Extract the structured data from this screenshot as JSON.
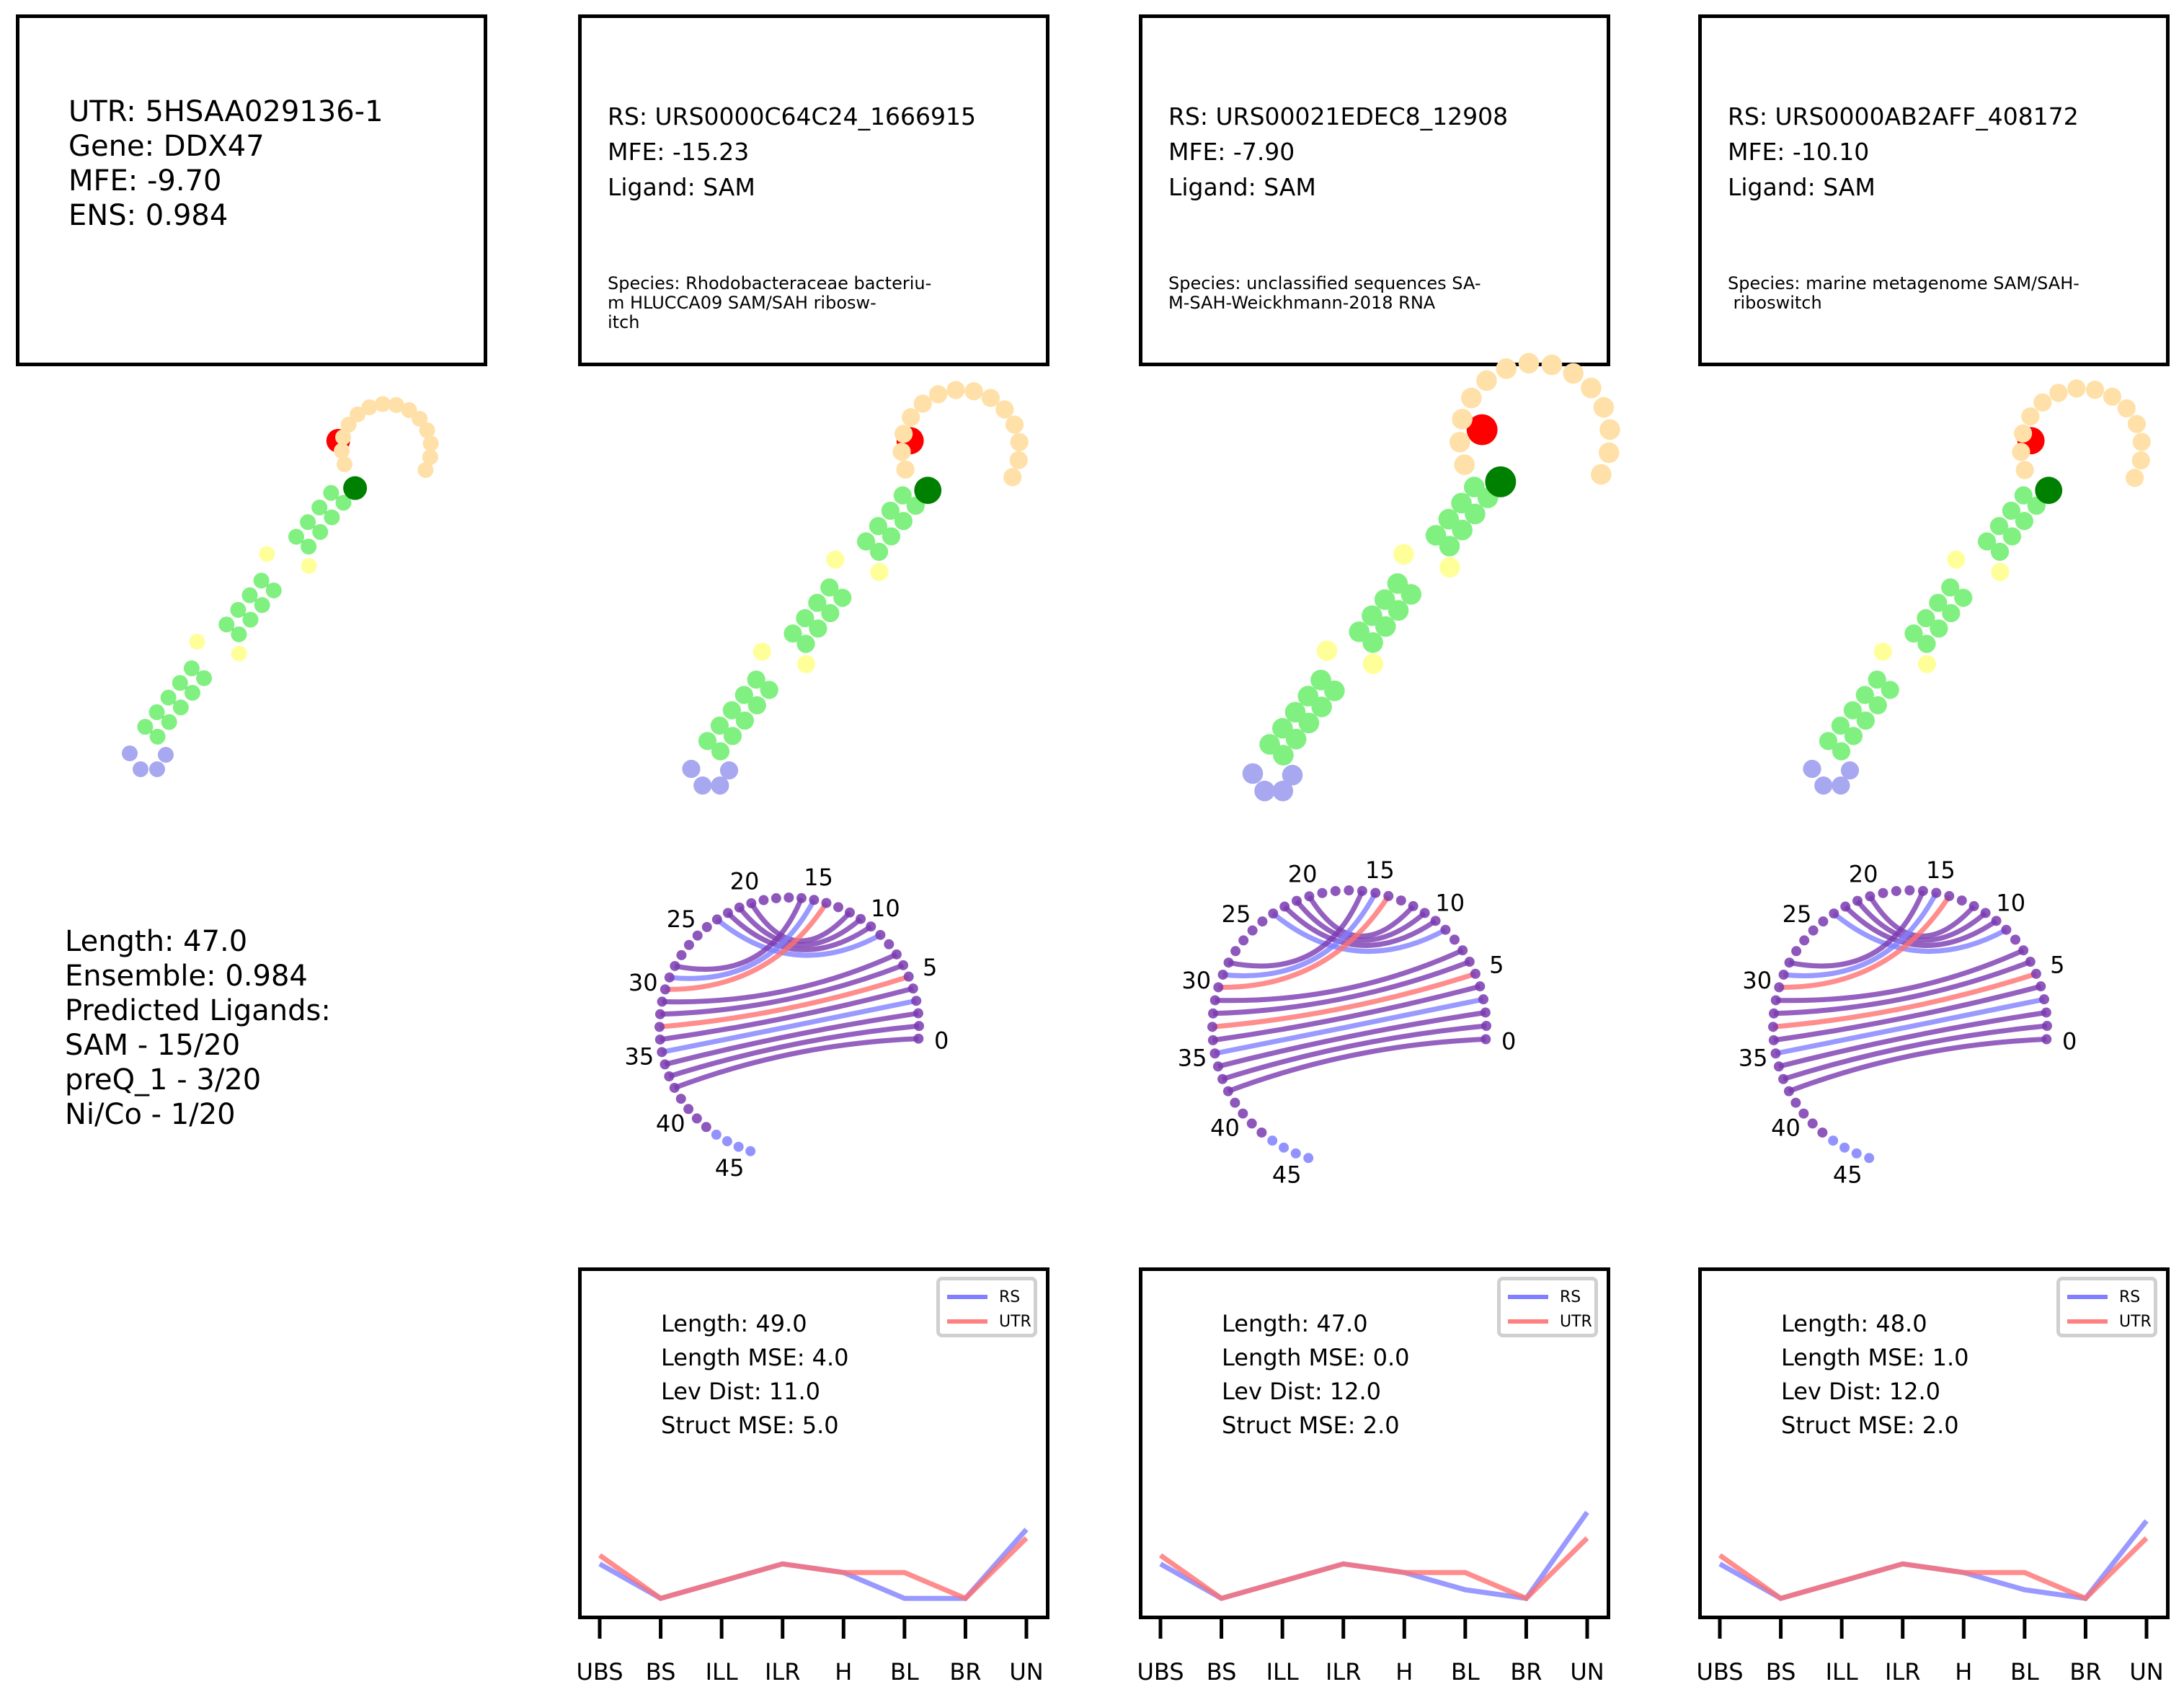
{
  "utr_box": {
    "lines": [
      "UTR: 5HSAA029136-1",
      "Gene: DDX47",
      "MFE: -9.70",
      "ENS: 0.984"
    ]
  },
  "rs_boxes": [
    {
      "lines": [
        "RS: URS0000C64C24_1666915",
        "MFE: -15.23",
        "Ligand: SAM"
      ],
      "species": [
        "Species: Rhodobacteraceae bacteriu-",
        "m HLUCCA09 SAM/SAH ribosw-",
        "itch"
      ]
    },
    {
      "lines": [
        "RS: URS00021EDEC8_12908",
        "MFE: -7.90",
        "Ligand: SAM"
      ],
      "species": [
        "Species: unclassified sequences SA-",
        "M-SAH-Weickhmann-2018 RNA"
      ]
    },
    {
      "lines": [
        "RS: URS0000AB2AFF_408172",
        "MFE: -10.10",
        "Ligand: SAM"
      ],
      "species": [
        "Species: marine metagenome SAM/SAH-",
        " riboswitch"
      ]
    }
  ],
  "summary": {
    "lines": [
      "Length: 47.0",
      "Ensemble: 0.984",
      "Predicted Ligands:",
      "SAM - 15/20",
      "preQ_1 - 3/20",
      "Ni/Co - 1/20"
    ]
  },
  "arc_labels": [
    "0",
    "5",
    "10",
    "15",
    "20",
    "25",
    "30",
    "35",
    "40",
    "45"
  ],
  "colors": {
    "rs": "#8080ff",
    "utr": "#ff7070",
    "overlap": "#7a3ab0",
    "stem": "#80f080",
    "loop": "#ffe0a8",
    "bulge": "#ffff99",
    "ends": "#a8a8f0",
    "start": "#ff0000",
    "anchor": "#008000"
  },
  "comparisons": [
    {
      "lines": [
        "Length: 49.0",
        "Length MSE: 4.0",
        "Lev Dist: 11.0",
        "Struct MSE: 5.0"
      ]
    },
    {
      "lines": [
        "Length: 47.0",
        "Length MSE: 0.0",
        "Lev Dist: 12.0",
        "Struct MSE: 2.0"
      ]
    },
    {
      "lines": [
        "Length: 48.0",
        "Length MSE: 1.0",
        "Lev Dist: 12.0",
        "Struct MSE: 2.0"
      ]
    }
  ],
  "legend": {
    "rs": "RS",
    "utr": "UTR"
  },
  "chart_data": {
    "type": "line",
    "categories": [
      "UBS",
      "BS",
      "ILL",
      "ILR",
      "H",
      "BL",
      "BR",
      "UN"
    ],
    "panels": [
      {
        "series": [
          {
            "name": "RS",
            "values": [
              3,
              1,
              2,
              3,
              2.5,
              1,
              1,
              5
            ]
          },
          {
            "name": "UTR",
            "values": [
              3.5,
              1,
              2,
              3,
              2.5,
              2.5,
              1,
              4.5
            ]
          }
        ]
      },
      {
        "series": [
          {
            "name": "RS",
            "values": [
              3,
              1,
              2,
              3,
              2.5,
              1.5,
              1,
              6
            ]
          },
          {
            "name": "UTR",
            "values": [
              3.5,
              1,
              2,
              3,
              2.5,
              2.5,
              1,
              4.5
            ]
          }
        ]
      },
      {
        "series": [
          {
            "name": "RS",
            "values": [
              3,
              1,
              2,
              3,
              2.5,
              1.5,
              1,
              5.5
            ]
          },
          {
            "name": "UTR",
            "values": [
              3.5,
              1,
              2,
              3,
              2.5,
              2.5,
              1,
              4.5
            ]
          }
        ]
      }
    ],
    "ylim": [
      0,
      20
    ]
  }
}
